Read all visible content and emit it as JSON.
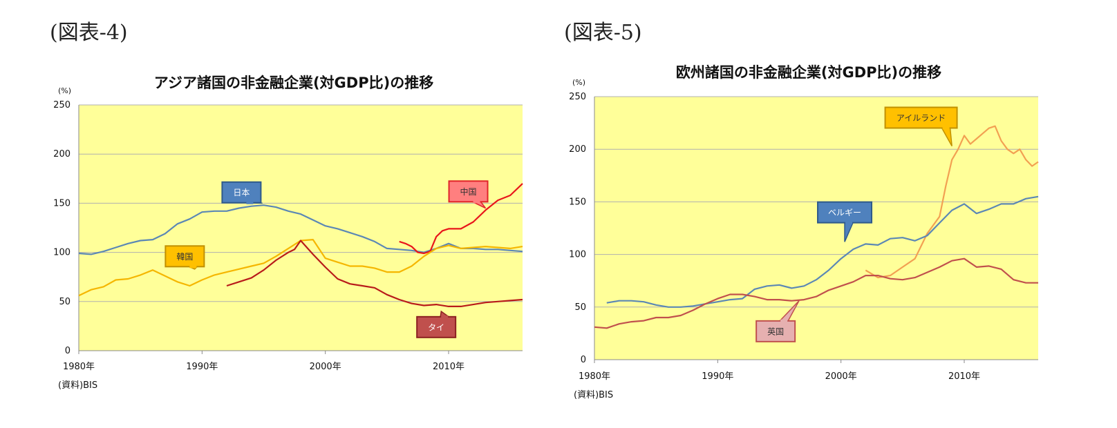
{
  "figures": [
    {
      "label": "(図表-4)"
    },
    {
      "label": "(図表-5)"
    }
  ],
  "colors": {
    "plot_bg": "#FFFF99",
    "grid": "#B0B0B0",
    "japan": "#5B87B5",
    "china": "#E8151B",
    "korea": "#F5B600",
    "thailand": "#B81A1A",
    "belgium": "#5B87B5",
    "ireland": "#F2A052",
    "uk": "#C0504D"
  },
  "chart_data": [
    {
      "type": "line",
      "title": "アジア諸国の非金融企業(対GDP比)の推移",
      "unit": "(%)",
      "source": "(資料)BIS",
      "xlabel": "",
      "ylabel": "",
      "ylim": [
        0,
        250
      ],
      "yticks": [
        0,
        50,
        100,
        150,
        200,
        250
      ],
      "xlim": [
        1980,
        2016
      ],
      "xticks": [
        {
          "value": 1980,
          "label": "1980年"
        },
        {
          "value": 1990,
          "label": "1990年"
        },
        {
          "value": 2000,
          "label": "2000年"
        },
        {
          "value": 2010,
          "label": "2010年"
        }
      ],
      "grid": true,
      "legend": "none",
      "series": [
        {
          "name": "日本",
          "color_key": "japan",
          "callout": {
            "x": 1993.2,
            "y": 161,
            "tipx": 1994.9,
            "tipy": 150,
            "fill": "#4F81BD",
            "stroke": "#2F5A8A",
            "text_dark": false
          },
          "x": [
            1980,
            1981,
            1982,
            1983,
            1984,
            1985,
            1986,
            1987,
            1988,
            1989,
            1990,
            1991,
            1992,
            1993,
            1994,
            1995,
            1996,
            1997,
            1998,
            1999,
            2000,
            2001,
            2002,
            2003,
            2004,
            2005,
            2006,
            2007,
            2008,
            2009,
            2010,
            2011,
            2012,
            2013,
            2014,
            2015,
            2016
          ],
          "y": [
            99,
            98,
            101,
            105,
            109,
            112,
            113,
            119,
            129,
            134,
            141,
            142,
            142,
            145,
            147,
            148,
            146,
            142,
            139,
            133,
            127,
            124,
            120,
            116,
            111,
            104,
            103,
            102,
            100,
            104,
            109,
            104,
            104,
            103,
            103,
            102,
            101
          ]
        },
        {
          "name": "中国",
          "color_key": "china",
          "callout": {
            "x": 2011.6,
            "y": 162,
            "tipx": 2013.0,
            "tipy": 145,
            "fill": "#FF7F7F",
            "stroke": "#E0242A",
            "text_dark": true
          },
          "x": [
            2006,
            2006.5,
            2007,
            2007.5,
            2008,
            2008.5,
            2009,
            2009.5,
            2010,
            2011,
            2012,
            2013,
            2014,
            2015,
            2016
          ],
          "y": [
            111,
            109,
            106,
            100,
            99,
            101,
            116,
            122,
            124,
            124,
            131,
            143,
            153,
            158,
            170
          ]
        },
        {
          "name": "韓国",
          "color_key": "korea",
          "callout": {
            "x": 1988.6,
            "y": 96,
            "tipx": 1989.4,
            "tipy": 83,
            "fill": "#FFC000",
            "stroke": "#C09000",
            "text_dark": true
          },
          "x": [
            1980,
            1981,
            1982,
            1983,
            1984,
            1985,
            1986,
            1987,
            1988,
            1989,
            1990,
            1991,
            1992,
            1993,
            1994,
            1995,
            1996,
            1997,
            1998,
            1999,
            2000,
            2001,
            2002,
            2003,
            2004,
            2005,
            2006,
            2007,
            2008,
            2009,
            2010,
            2011,
            2012,
            2013,
            2014,
            2015,
            2016
          ],
          "y": [
            56,
            62,
            65,
            72,
            73,
            77,
            82,
            76,
            70,
            66,
            72,
            77,
            80,
            83,
            86,
            89,
            96,
            104,
            112,
            113,
            94,
            90,
            86,
            86,
            84,
            80,
            80,
            86,
            96,
            104,
            107,
            104,
            105,
            106,
            105,
            104,
            106
          ]
        },
        {
          "name": "タイ",
          "color_key": "thailand",
          "callout": {
            "x": 2009.0,
            "y": 24,
            "tipx": 2009.4,
            "tipy": 40,
            "fill": "#C0504D",
            "stroke": "#8B2020",
            "text_dark": false
          },
          "x": [
            1992,
            1993,
            1994,
            1995,
            1996,
            1997,
            1997.5,
            1998,
            1999,
            2000,
            2001,
            2002,
            2003,
            2004,
            2005,
            2006,
            2007,
            2008,
            2009,
            2010,
            2011,
            2012,
            2013,
            2014,
            2015,
            2016
          ],
          "y": [
            66,
            70,
            74,
            82,
            92,
            100,
            103,
            112,
            98,
            85,
            73,
            68,
            66,
            64,
            57,
            52,
            48,
            46,
            47,
            45,
            45,
            47,
            49,
            50,
            51,
            52
          ]
        }
      ]
    },
    {
      "type": "line",
      "title": "欧州諸国の非金融企業(対GDP比)の推移",
      "unit": "(%)",
      "source": "(資料)BIS",
      "xlabel": "",
      "ylabel": "",
      "ylim": [
        0,
        250
      ],
      "yticks": [
        0,
        50,
        100,
        150,
        200,
        250
      ],
      "xlim": [
        1980,
        2016
      ],
      "xticks": [
        {
          "value": 1980,
          "label": "1980年"
        },
        {
          "value": 1990,
          "label": "1990年"
        },
        {
          "value": 2000,
          "label": "2000年"
        },
        {
          "value": 2010,
          "label": "2010年"
        }
      ],
      "grid": true,
      "legend": "none",
      "series": [
        {
          "name": "アイルランド",
          "color_key": "ireland",
          "callout": {
            "x": 2006.5,
            "y": 230,
            "tipx": 2009.0,
            "tipy": 203,
            "fill": "#FFC000",
            "stroke": "#C09000",
            "text_dark": true
          },
          "x": [
            2002,
            2003,
            2004,
            2005,
            2006,
            2007,
            2008,
            2008.5,
            2009,
            2009.5,
            2010,
            2010.5,
            2011,
            2011.5,
            2012,
            2012.5,
            2013,
            2013.5,
            2014,
            2014.5,
            2015,
            2015.5,
            2016
          ],
          "y": [
            85,
            78,
            80,
            88,
            96,
            120,
            136,
            165,
            190,
            200,
            213,
            205,
            210,
            215,
            220,
            222,
            208,
            200,
            196,
            200,
            190,
            184,
            188
          ]
        },
        {
          "name": "ベルギー",
          "color_key": "belgium",
          "callout": {
            "x": 2000.3,
            "y": 140,
            "tipx": 2000.3,
            "tipy": 112,
            "fill": "#4F81BD",
            "stroke": "#2F5A8A",
            "text_dark": false
          },
          "x": [
            1981,
            1982,
            1983,
            1984,
            1985,
            1986,
            1987,
            1988,
            1989,
            1990,
            1991,
            1992,
            1993,
            1994,
            1995,
            1996,
            1997,
            1998,
            1999,
            2000,
            2001,
            2002,
            2003,
            2004,
            2005,
            2006,
            2007,
            2008,
            2009,
            2010,
            2011,
            2012,
            2013,
            2014,
            2015,
            2016
          ],
          "y": [
            54,
            56,
            56,
            55,
            52,
            50,
            50,
            51,
            53,
            55,
            57,
            58,
            67,
            70,
            71,
            68,
            70,
            76,
            85,
            96,
            105,
            110,
            109,
            115,
            116,
            113,
            118,
            130,
            142,
            148,
            139,
            143,
            148,
            148,
            153,
            155
          ]
        },
        {
          "name": "英国",
          "color_key": "uk",
          "callout": {
            "x": 1994.7,
            "y": 27,
            "tipx": 1996.6,
            "tipy": 56,
            "fill": "#E6B0B0",
            "stroke": "#C0504D",
            "text_dark": true
          },
          "x": [
            1980,
            1981,
            1982,
            1983,
            1984,
            1985,
            1986,
            1987,
            1988,
            1989,
            1990,
            1991,
            1992,
            1993,
            1994,
            1995,
            1996,
            1997,
            1998,
            1999,
            2000,
            2001,
            2002,
            2003,
            2004,
            2005,
            2006,
            2007,
            2008,
            2009,
            2010,
            2011,
            2012,
            2013,
            2014,
            2015,
            2016
          ],
          "y": [
            31,
            30,
            34,
            36,
            37,
            40,
            40,
            42,
            47,
            53,
            58,
            62,
            62,
            60,
            57,
            57,
            56,
            57,
            60,
            66,
            70,
            74,
            80,
            80,
            77,
            76,
            78,
            83,
            88,
            94,
            96,
            88,
            89,
            86,
            76,
            73,
            73
          ]
        }
      ]
    }
  ]
}
